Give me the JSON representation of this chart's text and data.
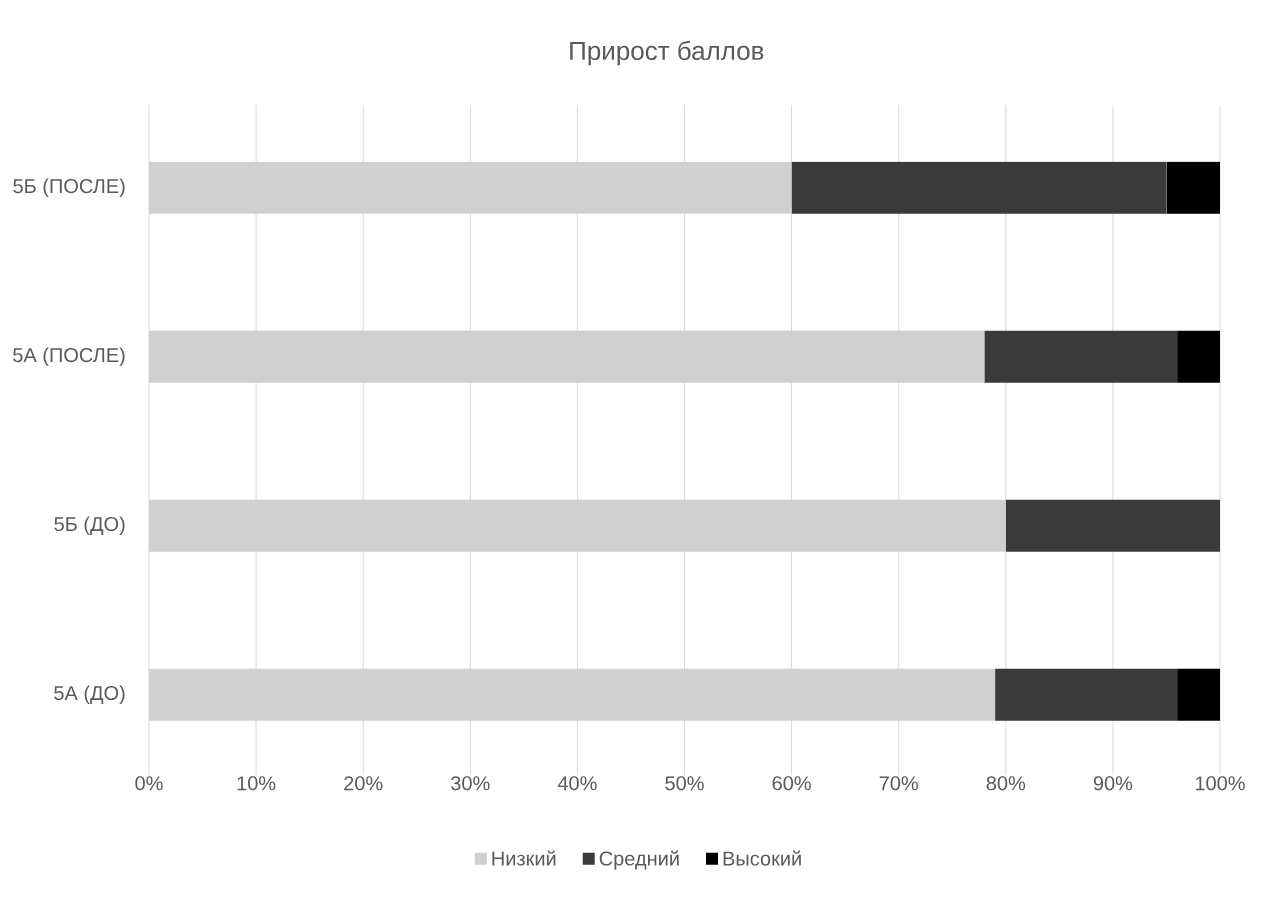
{
  "chart_data": {
    "type": "bar",
    "orientation": "horizontal",
    "stacked": true,
    "title": "Прирост баллов",
    "categories": [
      "5Б (ПОСЛЕ)",
      "5А (ПОСЛЕ)",
      "5Б (ДО)",
      "5А (ДО)"
    ],
    "series": [
      {
        "name": "Низкий",
        "color": "#d0d0d0",
        "values": [
          60,
          78,
          80,
          79
        ]
      },
      {
        "name": "Средний",
        "color": "#3a3a3a",
        "values": [
          35,
          18,
          20,
          17
        ]
      },
      {
        "name": "Высокий",
        "color": "#000000",
        "values": [
          5,
          4,
          0,
          4
        ]
      }
    ],
    "xlim": [
      0,
      100
    ],
    "xticks": [
      {
        "value": 0,
        "label": "0%"
      },
      {
        "value": 10,
        "label": "10%"
      },
      {
        "value": 20,
        "label": "20%"
      },
      {
        "value": 30,
        "label": "30%"
      },
      {
        "value": 40,
        "label": "40%"
      },
      {
        "value": 50,
        "label": "50%"
      },
      {
        "value": 60,
        "label": "60%"
      },
      {
        "value": 70,
        "label": "70%"
      },
      {
        "value": 80,
        "label": "80%"
      },
      {
        "value": 90,
        "label": "90%"
      },
      {
        "value": 100,
        "label": "100%"
      }
    ],
    "grid": "x",
    "legend": "bottom"
  }
}
